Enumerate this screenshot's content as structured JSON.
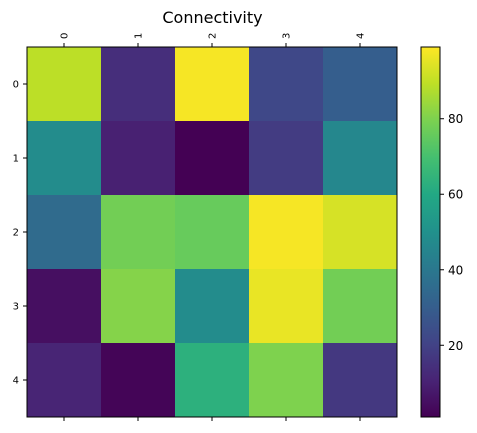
{
  "chart_data": {
    "type": "heatmap",
    "title": "Connectivity",
    "x_tick_labels": [
      "0",
      "1",
      "2",
      "3",
      "4"
    ],
    "y_tick_labels": [
      "0",
      "1",
      "2",
      "3",
      "4"
    ],
    "values": [
      [
        89,
        14,
        98,
        22,
        30
      ],
      [
        48,
        10,
        1,
        18,
        46
      ],
      [
        35,
        78,
        76,
        98,
        93
      ],
      [
        5,
        81,
        48,
        96,
        78
      ],
      [
        11,
        2,
        63,
        80,
        17
      ]
    ],
    "colormap": "viridis",
    "vmin": 1,
    "vmax": 99,
    "colorbar_ticks": [
      20,
      40,
      60,
      80
    ],
    "colorbar_tick_labels": [
      "20",
      "40",
      "60",
      "80"
    ],
    "x_ticks_position": "top",
    "grid": false
  }
}
